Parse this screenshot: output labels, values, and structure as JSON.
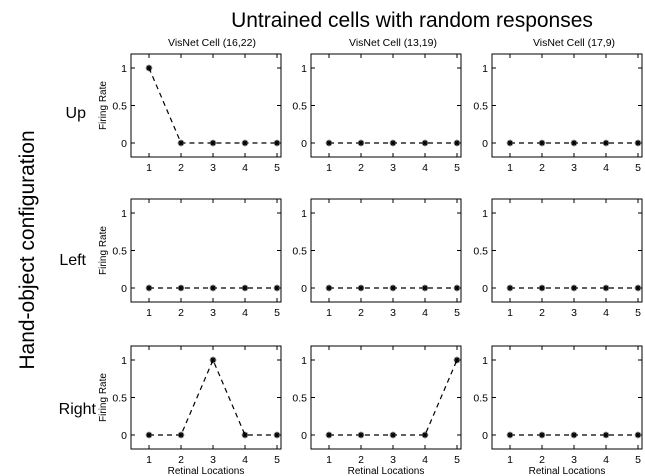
{
  "figure": {
    "title": "Untrained cells with random responses",
    "side_label": "Hand-object configuration",
    "column_titles": [
      "VisNet Cell (16,22)",
      "VisNet Cell (13,19)",
      "VisNet Cell (17,9)"
    ],
    "row_labels": [
      "Up",
      "Left",
      "Right"
    ],
    "ylabel": "Firing Rate",
    "xlabel": "Retinal Locations",
    "colors": {
      "line": "#000000",
      "marker": "#000000",
      "axes": "#000000"
    }
  },
  "chart_data": [
    {
      "type": "line",
      "panel": "Up / VisNet Cell (16,22)",
      "x": [
        1,
        2,
        3,
        4,
        5
      ],
      "y": [
        1,
        0,
        0,
        0,
        0
      ],
      "xlim": [
        1,
        5
      ],
      "ylim": [
        0,
        1
      ],
      "xticks": [
        "1",
        "2",
        "3",
        "4",
        "5"
      ],
      "yticks": [
        "0",
        "0.5",
        "1"
      ],
      "ylabel": "Firing Rate",
      "xlabel": "",
      "line_style": "dashed",
      "marker": "asterisk"
    },
    {
      "type": "line",
      "panel": "Up / VisNet Cell (13,19)",
      "x": [
        1,
        2,
        3,
        4,
        5
      ],
      "y": [
        0,
        0,
        0,
        0,
        0
      ],
      "xlim": [
        1,
        5
      ],
      "ylim": [
        0,
        1
      ],
      "xticks": [
        "1",
        "2",
        "3",
        "4",
        "5"
      ],
      "yticks": [
        "0",
        "0.5",
        "1"
      ],
      "ylabel": "",
      "xlabel": "",
      "line_style": "dashed",
      "marker": "asterisk"
    },
    {
      "type": "line",
      "panel": "Up / VisNet Cell (17,9)",
      "x": [
        1,
        2,
        3,
        4,
        5
      ],
      "y": [
        0,
        0,
        0,
        0,
        0
      ],
      "xlim": [
        1,
        5
      ],
      "ylim": [
        0,
        1
      ],
      "xticks": [
        "1",
        "2",
        "3",
        "4",
        "5"
      ],
      "yticks": [
        "0",
        "0.5",
        "1"
      ],
      "ylabel": "",
      "xlabel": "",
      "line_style": "dashed",
      "marker": "asterisk"
    },
    {
      "type": "line",
      "panel": "Left / VisNet Cell (16,22)",
      "x": [
        1,
        2,
        3,
        4,
        5
      ],
      "y": [
        0,
        0,
        0,
        0,
        0
      ],
      "xlim": [
        1,
        5
      ],
      "ylim": [
        0,
        1
      ],
      "xticks": [
        "1",
        "2",
        "3",
        "4",
        "5"
      ],
      "yticks": [
        "0",
        "0.5",
        "1"
      ],
      "ylabel": "Firing Rate",
      "xlabel": "",
      "line_style": "dashed",
      "marker": "asterisk"
    },
    {
      "type": "line",
      "panel": "Left / VisNet Cell (13,19)",
      "x": [
        1,
        2,
        3,
        4,
        5
      ],
      "y": [
        0,
        0,
        0,
        0,
        0
      ],
      "xlim": [
        1,
        5
      ],
      "ylim": [
        0,
        1
      ],
      "xticks": [
        "1",
        "2",
        "3",
        "4",
        "5"
      ],
      "yticks": [
        "0",
        "0.5",
        "1"
      ],
      "ylabel": "",
      "xlabel": "",
      "line_style": "dashed",
      "marker": "asterisk"
    },
    {
      "type": "line",
      "panel": "Left / VisNet Cell (17,9)",
      "x": [
        1,
        2,
        3,
        4,
        5
      ],
      "y": [
        0,
        0,
        0,
        0,
        0
      ],
      "xlim": [
        1,
        5
      ],
      "ylim": [
        0,
        1
      ],
      "xticks": [
        "1",
        "2",
        "3",
        "4",
        "5"
      ],
      "yticks": [
        "0",
        "0.5",
        "1"
      ],
      "ylabel": "",
      "xlabel": "",
      "line_style": "dashed",
      "marker": "asterisk"
    },
    {
      "type": "line",
      "panel": "Right / VisNet Cell (16,22)",
      "x": [
        1,
        2,
        3,
        4,
        5
      ],
      "y": [
        0,
        0,
        1,
        0,
        0
      ],
      "xlim": [
        1,
        5
      ],
      "ylim": [
        0,
        1
      ],
      "xticks": [
        "1",
        "2",
        "3",
        "4",
        "5"
      ],
      "yticks": [
        "0",
        "0.5",
        "1"
      ],
      "ylabel": "Firing Rate",
      "xlabel": "Retinal Locations",
      "line_style": "dashed",
      "marker": "asterisk"
    },
    {
      "type": "line",
      "panel": "Right / VisNet Cell (13,19)",
      "x": [
        1,
        2,
        3,
        4,
        5
      ],
      "y": [
        0,
        0,
        0,
        0,
        1
      ],
      "xlim": [
        1,
        5
      ],
      "ylim": [
        0,
        1
      ],
      "xticks": [
        "1",
        "2",
        "3",
        "4",
        "5"
      ],
      "yticks": [
        "0",
        "0.5",
        "1"
      ],
      "ylabel": "",
      "xlabel": "Retinal Locations",
      "line_style": "dashed",
      "marker": "asterisk"
    },
    {
      "type": "line",
      "panel": "Right / VisNet Cell (17,9)",
      "x": [
        1,
        2,
        3,
        4,
        5
      ],
      "y": [
        0,
        0,
        0,
        0,
        0
      ],
      "xlim": [
        1,
        5
      ],
      "ylim": [
        0,
        1
      ],
      "xticks": [
        "1",
        "2",
        "3",
        "4",
        "5"
      ],
      "yticks": [
        "0",
        "0.5",
        "1"
      ],
      "ylabel": "",
      "xlabel": "Retinal Locations",
      "line_style": "dashed",
      "marker": "asterisk"
    }
  ]
}
